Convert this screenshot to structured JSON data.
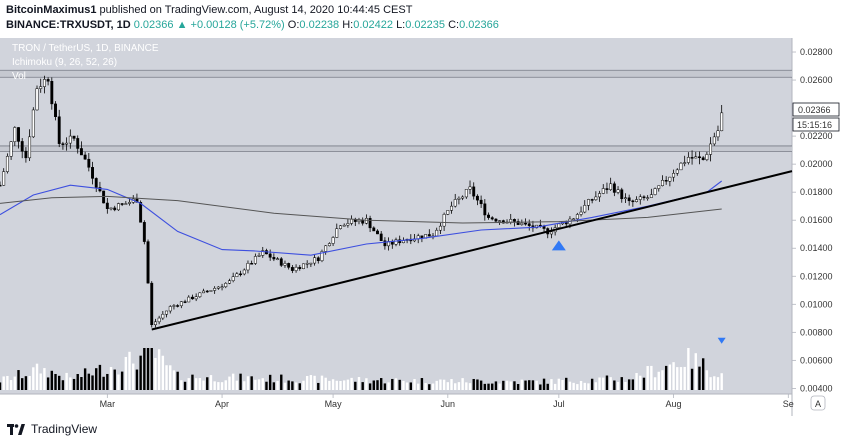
{
  "header": {
    "author": "BitcoinMaximus1",
    "published_text": "published on TradingView.com, August 14, 2020 10:44:45 CEST",
    "symbol": "BINANCE:TRXUSDT, 1D",
    "last": "0.02366",
    "change_arrow": "▲",
    "change": "+0.00128 (+5.72%)",
    "o_label": "O:",
    "o_value": "0.02238",
    "h_label": "H:",
    "h_value": "0.02422",
    "l_label": "L:",
    "l_value": "0.02235",
    "c_label": "C:",
    "c_value": "0.02366"
  },
  "pane_labels": {
    "title": "TRON / TetherUS, 1D, BINANCE",
    "indicator": "Ichimoku (9, 26, 52, 26)",
    "volume": "Vol"
  },
  "price_axis": {
    "ticks": [
      "0.02800",
      "0.02600",
      "0.02400",
      "0.02200",
      "0.02000",
      "0.01800",
      "0.01600",
      "0.01400",
      "0.01200",
      "0.01000",
      "0.00800",
      "0.00600",
      "0.00400"
    ],
    "last_price_label": "0.02366",
    "countdown_label": "15:15:16",
    "auto_label": "A"
  },
  "time_axis": {
    "ticks": [
      "Mar",
      "Apr",
      "May",
      "Jun",
      "Jul",
      "Aug",
      "Se"
    ]
  },
  "footer": {
    "brand": "TradingView"
  },
  "colors": {
    "pane_bg": "#d1d4dc",
    "candle_up": "#ffffff",
    "candle_down": "#000000",
    "wick": "#000000",
    "ichimoku_fast": "#3d4fdf",
    "ichimoku_slow": "#555555",
    "trendline": "#000000",
    "zone_line": "#787b86",
    "marker": "#3179f5"
  },
  "chart_data": {
    "type": "candlestick",
    "symbol": "TRXUSDT",
    "interval": "1D",
    "x_range": [
      "2020-02-01",
      "2020-09-02"
    ],
    "y_range": [
      0.0036,
      0.029
    ],
    "y_ticks": [
      0.028,
      0.026,
      0.024,
      0.022,
      0.02,
      0.018,
      0.016,
      0.014,
      0.012,
      0.01,
      0.008,
      0.006,
      0.004
    ],
    "price_anchors": [
      {
        "date": "2020-02-01",
        "close": 0.0185
      },
      {
        "date": "2020-02-05",
        "close": 0.0225
      },
      {
        "date": "2020-02-08",
        "close": 0.0205
      },
      {
        "date": "2020-02-11",
        "close": 0.0255
      },
      {
        "date": "2020-02-14",
        "close": 0.0262
      },
      {
        "date": "2020-02-17",
        "close": 0.0215
      },
      {
        "date": "2020-02-21",
        "close": 0.0218
      },
      {
        "date": "2020-02-25",
        "close": 0.0198
      },
      {
        "date": "2020-03-01",
        "close": 0.0168
      },
      {
        "date": "2020-03-06",
        "close": 0.0172
      },
      {
        "date": "2020-03-09",
        "close": 0.0175
      },
      {
        "date": "2020-03-11",
        "close": 0.0145
      },
      {
        "date": "2020-03-13",
        "close": 0.0085
      },
      {
        "date": "2020-03-18",
        "close": 0.0098
      },
      {
        "date": "2020-03-25",
        "close": 0.0106
      },
      {
        "date": "2020-04-03",
        "close": 0.0116
      },
      {
        "date": "2020-04-12",
        "close": 0.0137
      },
      {
        "date": "2020-04-20",
        "close": 0.0125
      },
      {
        "date": "2020-04-27",
        "close": 0.0133
      },
      {
        "date": "2020-05-03",
        "close": 0.0158
      },
      {
        "date": "2020-05-10",
        "close": 0.016
      },
      {
        "date": "2020-05-15",
        "close": 0.0142
      },
      {
        "date": "2020-05-21",
        "close": 0.0147
      },
      {
        "date": "2020-05-28",
        "close": 0.015
      },
      {
        "date": "2020-06-02",
        "close": 0.017
      },
      {
        "date": "2020-06-07",
        "close": 0.0182
      },
      {
        "date": "2020-06-12",
        "close": 0.0162
      },
      {
        "date": "2020-06-20",
        "close": 0.0158
      },
      {
        "date": "2020-06-28",
        "close": 0.0152
      },
      {
        "date": "2020-07-05",
        "close": 0.0162
      },
      {
        "date": "2020-07-10",
        "close": 0.0175
      },
      {
        "date": "2020-07-15",
        "close": 0.0185
      },
      {
        "date": "2020-07-20",
        "close": 0.0172
      },
      {
        "date": "2020-07-26",
        "close": 0.0177
      },
      {
        "date": "2020-08-01",
        "close": 0.0195
      },
      {
        "date": "2020-08-05",
        "close": 0.0205
      },
      {
        "date": "2020-08-09",
        "close": 0.0203
      },
      {
        "date": "2020-08-12",
        "close": 0.022
      },
      {
        "date": "2020-08-13",
        "close": 0.0224
      },
      {
        "date": "2020-08-14",
        "close": 0.02366
      }
    ],
    "last_candle": {
      "date": "2020-08-14",
      "open": 0.02238,
      "high": 0.02422,
      "low": 0.02235,
      "close": 0.02366
    },
    "ichimoku_fast_line": [
      {
        "date": "2020-02-01",
        "y": 0.0164
      },
      {
        "date": "2020-02-10",
        "y": 0.0178
      },
      {
        "date": "2020-02-20",
        "y": 0.0185
      },
      {
        "date": "2020-03-01",
        "y": 0.0182
      },
      {
        "date": "2020-03-10",
        "y": 0.0172
      },
      {
        "date": "2020-03-20",
        "y": 0.0152
      },
      {
        "date": "2020-04-01",
        "y": 0.0139
      },
      {
        "date": "2020-04-10",
        "y": 0.0138
      },
      {
        "date": "2020-04-25",
        "y": 0.0135
      },
      {
        "date": "2020-05-10",
        "y": 0.0143
      },
      {
        "date": "2020-05-25",
        "y": 0.0147
      },
      {
        "date": "2020-06-10",
        "y": 0.0153
      },
      {
        "date": "2020-06-25",
        "y": 0.0155
      },
      {
        "date": "2020-07-10",
        "y": 0.0162
      },
      {
        "date": "2020-07-25",
        "y": 0.017
      },
      {
        "date": "2020-08-10",
        "y": 0.018
      },
      {
        "date": "2020-08-14",
        "y": 0.0188
      }
    ],
    "ichimoku_slow_line": [
      {
        "date": "2020-02-01",
        "y": 0.0172
      },
      {
        "date": "2020-02-15",
        "y": 0.0176
      },
      {
        "date": "2020-03-01",
        "y": 0.0177
      },
      {
        "date": "2020-03-20",
        "y": 0.0174
      },
      {
        "date": "2020-04-15",
        "y": 0.0165
      },
      {
        "date": "2020-05-10",
        "y": 0.016
      },
      {
        "date": "2020-06-05",
        "y": 0.0158
      },
      {
        "date": "2020-07-01",
        "y": 0.0159
      },
      {
        "date": "2020-07-25",
        "y": 0.0162
      },
      {
        "date": "2020-08-14",
        "y": 0.0168
      }
    ],
    "ascending_trendline": [
      {
        "date": "2020-03-13",
        "y": 0.0082
      },
      {
        "date": "2020-09-02",
        "y": 0.0195
      }
    ],
    "horizontal_zones": [
      {
        "top": 0.0267,
        "bottom": 0.0262
      },
      {
        "top": 0.0213,
        "bottom": 0.0209
      }
    ],
    "markers": [
      {
        "type": "triangle-up",
        "date": "2020-07-01",
        "y": 0.0142
      },
      {
        "type": "triangle-down",
        "date": "2020-08-14",
        "y": 0.0074
      }
    ],
    "volume_relative_anchors": [
      {
        "date": "2020-02-01",
        "v": 0.25
      },
      {
        "date": "2020-02-12",
        "v": 0.55
      },
      {
        "date": "2020-02-20",
        "v": 0.3
      },
      {
        "date": "2020-03-12",
        "v": 0.9
      },
      {
        "date": "2020-03-13",
        "v": 1.0
      },
      {
        "date": "2020-03-20",
        "v": 0.35
      },
      {
        "date": "2020-04-15",
        "v": 0.3
      },
      {
        "date": "2020-05-20",
        "v": 0.25
      },
      {
        "date": "2020-06-25",
        "v": 0.22
      },
      {
        "date": "2020-07-20",
        "v": 0.3
      },
      {
        "date": "2020-08-05",
        "v": 0.85
      },
      {
        "date": "2020-08-14",
        "v": 0.4
      }
    ]
  }
}
